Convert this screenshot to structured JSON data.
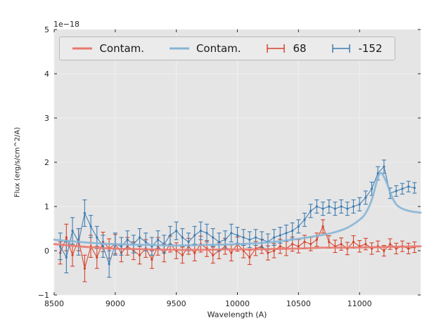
{
  "figure": {
    "offset_text": "1e−18"
  },
  "legend": {
    "items": [
      {
        "label": "Contam.",
        "type": "line",
        "color": "#e8796f"
      },
      {
        "label": "Contam.",
        "type": "line",
        "color": "#86b5d6"
      },
      {
        "label": "68",
        "type": "errorbar",
        "color": "#d6432c"
      },
      {
        "label": "-152",
        "type": "errorbar",
        "color": "#3d7cb1"
      }
    ]
  },
  "chart_data": {
    "type": "line",
    "title": "",
    "xlabel": "Wavelength (A)",
    "ylabel": "Flux (erg/s/cm^2/A)",
    "y_offset_factor": "1e-18",
    "xlim": [
      8500,
      11500
    ],
    "ylim": [
      -1,
      5
    ],
    "xticks": [
      8500,
      9000,
      9500,
      10000,
      10500,
      11000
    ],
    "yticks": [
      -1,
      0,
      1,
      2,
      3,
      4,
      5
    ],
    "grid": true,
    "legend_position": "upper center, horizontal",
    "background": "#e5e5e5",
    "series": [
      {
        "name": "68",
        "kind": "errorbar",
        "color": "#d6432c",
        "x": [
          8550,
          8600,
          8650,
          8700,
          8750,
          8800,
          8850,
          8900,
          8950,
          9000,
          9050,
          9100,
          9150,
          9200,
          9250,
          9300,
          9350,
          9400,
          9450,
          9500,
          9550,
          9600,
          9650,
          9700,
          9750,
          9800,
          9850,
          9900,
          9950,
          10000,
          10050,
          10100,
          10150,
          10200,
          10250,
          10300,
          10350,
          10400,
          10450,
          10500,
          10550,
          10600,
          10650,
          10700,
          10750,
          10800,
          10850,
          10900,
          10950,
          11000,
          11050,
          11100,
          11150,
          11200,
          11250,
          11300,
          11350,
          11400,
          11450
        ],
        "y": [
          -0.05,
          0.3,
          -0.1,
          0.25,
          -0.4,
          0.1,
          -0.15,
          0.2,
          0.05,
          0.15,
          -0.05,
          0.1,
          0.0,
          -0.1,
          0.05,
          -0.2,
          0.1,
          -0.05,
          0.15,
          0.0,
          -0.1,
          0.1,
          -0.05,
          0.15,
          0.05,
          -0.1,
          0.0,
          0.1,
          -0.05,
          0.15,
          0.0,
          -0.15,
          0.05,
          0.1,
          -0.05,
          0.0,
          0.1,
          0.05,
          0.15,
          0.1,
          0.2,
          0.15,
          0.25,
          0.55,
          0.2,
          0.1,
          0.15,
          0.05,
          0.2,
          0.1,
          0.15,
          0.05,
          0.1,
          0.0,
          0.15,
          0.05,
          0.1,
          0.05,
          0.08
        ],
        "yerr": [
          0.25,
          0.3,
          0.25,
          0.25,
          0.3,
          0.25,
          0.25,
          0.22,
          0.22,
          0.22,
          0.2,
          0.2,
          0.2,
          0.2,
          0.2,
          0.2,
          0.2,
          0.2,
          0.18,
          0.18,
          0.18,
          0.18,
          0.18,
          0.18,
          0.18,
          0.18,
          0.18,
          0.18,
          0.18,
          0.16,
          0.16,
          0.16,
          0.16,
          0.16,
          0.16,
          0.16,
          0.16,
          0.16,
          0.16,
          0.15,
          0.15,
          0.15,
          0.15,
          0.15,
          0.14,
          0.14,
          0.14,
          0.14,
          0.14,
          0.13,
          0.13,
          0.13,
          0.12,
          0.12,
          0.12,
          0.12,
          0.12,
          0.12,
          0.12
        ]
      },
      {
        "name": "-152",
        "kind": "errorbar",
        "color": "#3d7cb1",
        "x": [
          8550,
          8600,
          8650,
          8700,
          8750,
          8800,
          8850,
          8900,
          8950,
          9000,
          9050,
          9100,
          9150,
          9200,
          9250,
          9300,
          9350,
          9400,
          9450,
          9500,
          9550,
          9600,
          9650,
          9700,
          9750,
          9800,
          9850,
          9900,
          9950,
          10000,
          10050,
          10100,
          10150,
          10200,
          10250,
          10300,
          10350,
          10400,
          10450,
          10500,
          10550,
          10600,
          10650,
          10700,
          10750,
          10800,
          10850,
          10900,
          10950,
          11000,
          11050,
          11100,
          11150,
          11200,
          11250,
          11300,
          11350,
          11400,
          11450
        ],
        "y": [
          0.1,
          -0.15,
          0.45,
          0.2,
          0.85,
          0.55,
          0.3,
          0.1,
          -0.3,
          0.15,
          0.1,
          0.25,
          0.15,
          0.3,
          0.2,
          0.1,
          0.25,
          0.15,
          0.35,
          0.45,
          0.3,
          0.2,
          0.35,
          0.45,
          0.4,
          0.3,
          0.2,
          0.25,
          0.4,
          0.35,
          0.3,
          0.25,
          0.3,
          0.25,
          0.2,
          0.3,
          0.35,
          0.4,
          0.45,
          0.55,
          0.7,
          0.9,
          1.0,
          0.95,
          1.0,
          0.95,
          1.0,
          0.95,
          1.0,
          1.05,
          1.2,
          1.4,
          1.75,
          1.9,
          1.3,
          1.35,
          1.4,
          1.45,
          1.42
        ],
        "yerr": [
          0.3,
          0.35,
          0.3,
          0.3,
          0.3,
          0.25,
          0.25,
          0.25,
          0.3,
          0.25,
          0.2,
          0.2,
          0.2,
          0.2,
          0.2,
          0.2,
          0.2,
          0.2,
          0.2,
          0.2,
          0.2,
          0.2,
          0.2,
          0.2,
          0.2,
          0.2,
          0.2,
          0.2,
          0.2,
          0.18,
          0.18,
          0.18,
          0.18,
          0.18,
          0.18,
          0.18,
          0.18,
          0.18,
          0.18,
          0.15,
          0.15,
          0.15,
          0.15,
          0.15,
          0.15,
          0.15,
          0.15,
          0.15,
          0.15,
          0.15,
          0.15,
          0.15,
          0.15,
          0.15,
          0.12,
          0.12,
          0.12,
          0.12,
          0.12
        ]
      },
      {
        "name": "Contam.",
        "kind": "line",
        "color": "#e8796f",
        "x": [
          8500,
          8700,
          8900,
          9100,
          9300,
          9500,
          9700,
          9900,
          10100,
          10300,
          10500,
          10700,
          10900,
          11100,
          11300,
          11500
        ],
        "y": [
          0.15,
          0.1,
          0.06,
          0.04,
          0.03,
          0.02,
          0.02,
          0.03,
          0.03,
          0.04,
          0.05,
          0.07,
          0.07,
          0.08,
          0.09,
          0.1
        ]
      },
      {
        "name": "Contam.",
        "kind": "line",
        "color": "#86b5d6",
        "x": [
          8500,
          8700,
          8900,
          9100,
          9300,
          9500,
          9700,
          9900,
          10100,
          10300,
          10500,
          10700,
          10800,
          10900,
          11000,
          11050,
          11100,
          11150,
          11180,
          11220,
          11260,
          11300,
          11350,
          11420,
          11500
        ],
        "y": [
          0.25,
          0.2,
          0.16,
          0.14,
          0.13,
          0.12,
          0.13,
          0.14,
          0.16,
          0.2,
          0.27,
          0.36,
          0.42,
          0.52,
          0.7,
          0.85,
          1.15,
          1.65,
          1.75,
          1.55,
          1.25,
          1.05,
          0.95,
          0.89,
          0.86
        ]
      }
    ]
  }
}
